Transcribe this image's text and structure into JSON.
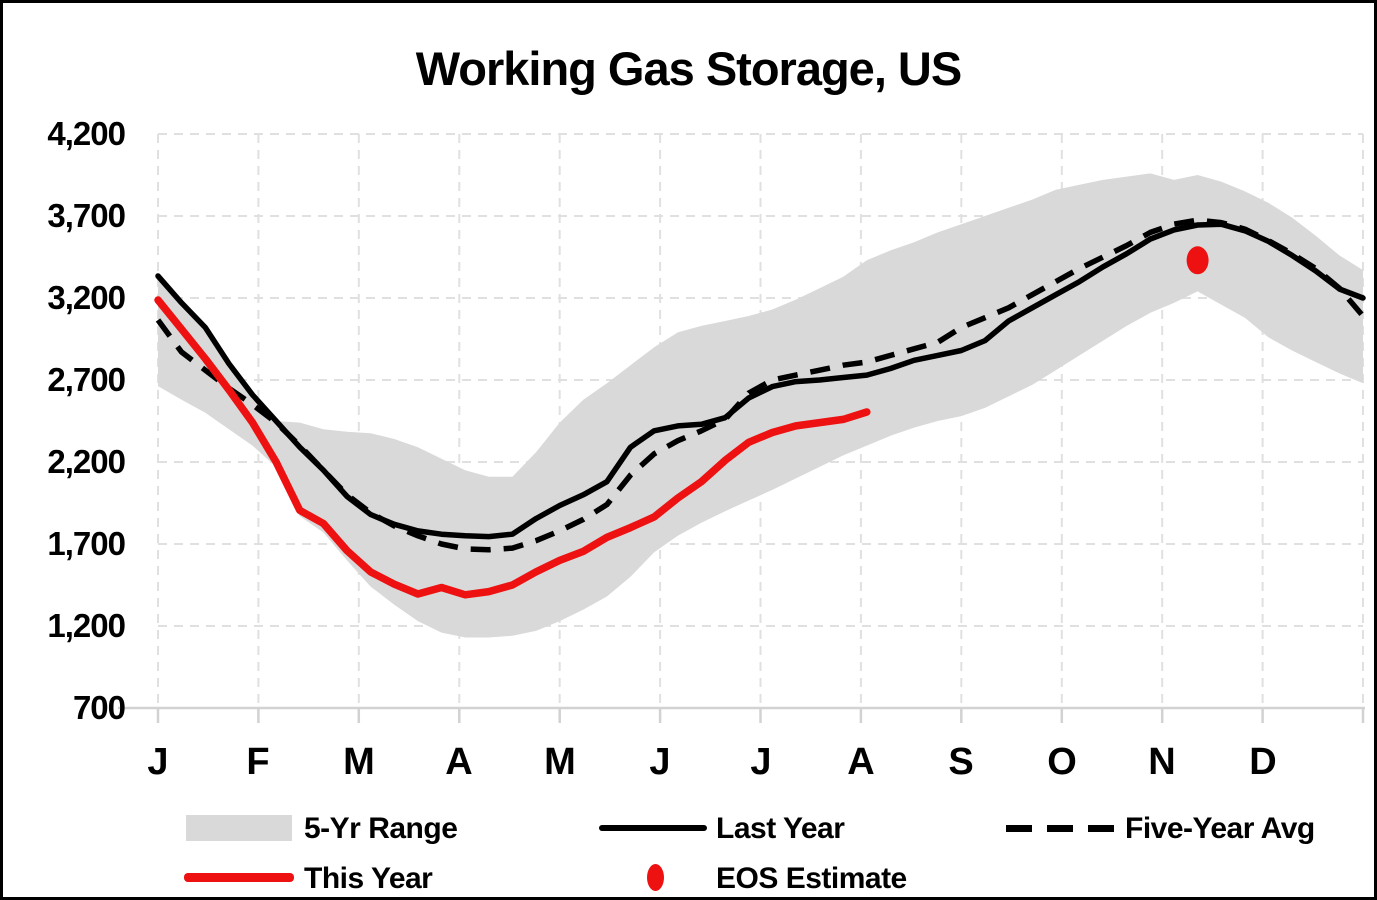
{
  "title": "Working Gas Storage, US",
  "y_axis": {
    "labels": [
      "4,200",
      "3,700",
      "3,200",
      "2,700",
      "2,200",
      "1,700",
      "1,200",
      "700"
    ],
    "values": [
      4200,
      3700,
      3200,
      2700,
      2200,
      1700,
      1200,
      700
    ]
  },
  "x_axis": {
    "labels": [
      "J",
      "F",
      "M",
      "A",
      "M",
      "J",
      "J",
      "A",
      "S",
      "O",
      "N",
      "D"
    ]
  },
  "legend": {
    "range_label": "5-Yr Range",
    "last_year_label": "Last Year",
    "five_year_avg_label": "Five-Year Avg",
    "this_year_label": "This Year",
    "eos_label": "EOS Estimate"
  },
  "colors": {
    "band": "#d9d9d9",
    "black_line": "#000000",
    "red_line": "#ee1111",
    "grid": "#e0e0e0",
    "axis": "#d2d2d2"
  },
  "chart_data": {
    "type": "line",
    "title": "Working Gas Storage, US",
    "x_unit": "weeks, Jan through Dec",
    "months": [
      "J",
      "F",
      "M",
      "A",
      "M",
      "J",
      "J",
      "A",
      "S",
      "O",
      "N",
      "D"
    ],
    "ylim": [
      700,
      4200
    ],
    "y_ticks": [
      700,
      1200,
      1700,
      2200,
      2700,
      3200,
      3700,
      4200
    ],
    "grid": "dashed light gray, horizontal and vertical",
    "legend_position": "below chart, two rows",
    "series": [
      {
        "name": "5-Yr Range top",
        "style": "band-upper-edge",
        "values": [
          3335,
          3160,
          3020,
          2800,
          2610,
          2450,
          2440,
          2400,
          2385,
          2375,
          2340,
          2290,
          2220,
          2150,
          2110,
          2110,
          2260,
          2440,
          2580,
          2680,
          2790,
          2900,
          2990,
          3030,
          3060,
          3090,
          3130,
          3190,
          3260,
          3330,
          3430,
          3490,
          3540,
          3600,
          3650,
          3700,
          3750,
          3800,
          3860,
          3890,
          3920,
          3940,
          3960,
          3920,
          3950,
          3910,
          3850,
          3780,
          3690,
          3580,
          3460,
          3370
        ]
      },
      {
        "name": "5-Yr Range bottom",
        "style": "band-lower-edge",
        "values": [
          2663,
          2580,
          2500,
          2400,
          2300,
          2170,
          1870,
          1770,
          1600,
          1440,
          1330,
          1230,
          1160,
          1130,
          1130,
          1140,
          1170,
          1230,
          1300,
          1380,
          1500,
          1650,
          1750,
          1830,
          1900,
          1965,
          2030,
          2100,
          2170,
          2240,
          2300,
          2360,
          2410,
          2450,
          2480,
          2530,
          2600,
          2670,
          2760,
          2850,
          2940,
          3030,
          3110,
          3170,
          3240,
          3160,
          3080,
          2960,
          2880,
          2810,
          2740,
          2680
        ]
      },
      {
        "name": "Last Year",
        "style": "solid black",
        "values": [
          3334,
          3170,
          3020,
          2800,
          2610,
          2450,
          2290,
          2150,
          1990,
          1880,
          1820,
          1780,
          1760,
          1750,
          1745,
          1760,
          1855,
          1935,
          2000,
          2080,
          2290,
          2390,
          2420,
          2430,
          2470,
          2590,
          2660,
          2690,
          2700,
          2715,
          2730,
          2770,
          2820,
          2850,
          2880,
          2940,
          3060,
          3140,
          3220,
          3300,
          3390,
          3470,
          3560,
          3615,
          3645,
          3650,
          3610,
          3545,
          3460,
          3365,
          3255,
          3200
        ]
      },
      {
        "name": "Five-Year Avg",
        "style": "dashed black",
        "values": [
          3066,
          2870,
          2760,
          2650,
          2550,
          2440,
          2300,
          2150,
          2000,
          1890,
          1810,
          1750,
          1700,
          1670,
          1665,
          1675,
          1720,
          1780,
          1850,
          1940,
          2120,
          2250,
          2330,
          2390,
          2460,
          2620,
          2700,
          2730,
          2760,
          2790,
          2810,
          2850,
          2890,
          2930,
          3020,
          3080,
          3140,
          3220,
          3300,
          3380,
          3450,
          3520,
          3600,
          3650,
          3675,
          3660,
          3620,
          3550,
          3470,
          3380,
          3260,
          3090
        ]
      },
      {
        "name": "This Year",
        "style": "solid red, ends early August",
        "values": [
          3188,
          3010,
          2830,
          2640,
          2440,
          2200,
          1905,
          1825,
          1660,
          1530,
          1455,
          1395,
          1435,
          1390,
          1410,
          1450,
          1530,
          1600,
          1655,
          1740,
          1800,
          1865,
          1980,
          2080,
          2210,
          2320,
          2380,
          2420,
          2440,
          2460,
          2505
        ]
      }
    ],
    "eos_estimate": {
      "name": "EOS Estimate",
      "week": 44,
      "approx_month": "mid-November",
      "value": 3430
    }
  }
}
